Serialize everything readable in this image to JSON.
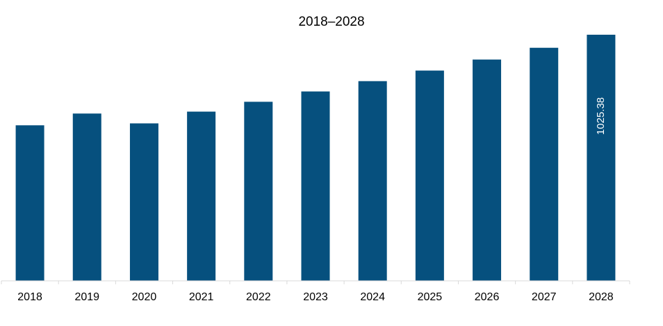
{
  "chart_data": {
    "type": "bar",
    "title": "2018–2028",
    "xlabel": "",
    "ylabel": "",
    "categories": [
      "2018",
      "2019",
      "2020",
      "2021",
      "2022",
      "2023",
      "2024",
      "2025",
      "2026",
      "2027",
      "2028"
    ],
    "values": [
      648,
      697,
      656,
      705,
      746,
      789,
      832,
      876,
      922,
      971,
      1025.38
    ],
    "data_labels": [
      null,
      null,
      null,
      null,
      null,
      null,
      null,
      null,
      null,
      null,
      "1025.38"
    ],
    "ylim": [
      0,
      1060
    ],
    "grid": false,
    "legend": "none",
    "bar_color": "#06507E",
    "axis_color": "#D9D9D9"
  }
}
